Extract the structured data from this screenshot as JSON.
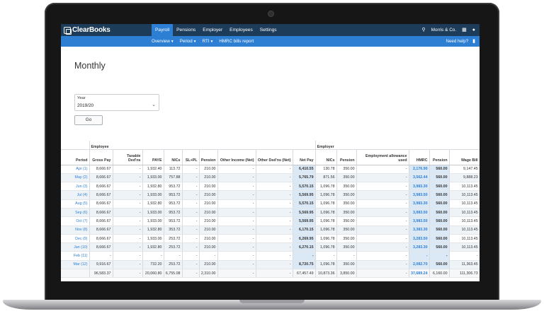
{
  "app": {
    "logo_text": "ClearBooks",
    "main_nav": [
      "Payroll",
      "Pensions",
      "Employer",
      "Employees",
      "Settings"
    ],
    "company": "Morris & Co."
  },
  "subnav": {
    "items": [
      "Overview",
      "Period",
      "RTI",
      "HMRC bills report"
    ],
    "help": "Need help?"
  },
  "page": {
    "title": "Monthly",
    "year_label": "Year",
    "year_value": "2019/20",
    "go_label": "Go"
  },
  "table": {
    "group_headers": {
      "employee": "Employee",
      "employer": "Employer"
    },
    "columns": [
      "Period",
      "Gross Pay",
      "Taxable Ded'ns",
      "PAYE",
      "NICs",
      "SL+PL",
      "Pension",
      "Other Income (Net)",
      "Other Ded'ns (Net)",
      "Net Pay",
      "NICs",
      "Pension",
      "Employment allowance used",
      "HMRC",
      "Pension",
      "Wage Bill"
    ],
    "rows": [
      [
        "Apr (1)",
        "8,666.67",
        "-",
        "1,932.40",
        "113.72",
        "-",
        "210.00",
        "-",
        "-",
        "6,410.55",
        "130.78",
        "350.00",
        "-",
        "2,176.90",
        "560.00",
        "9,147.45"
      ],
      [
        "May (2)",
        "8,666.67",
        "-",
        "1,933.00",
        "757.88",
        "-",
        "210.00",
        "-",
        "-",
        "5,765.79",
        "871.56",
        "350.00",
        "-",
        "3,562.44",
        "560.00",
        "9,888.23"
      ],
      [
        "Jun (3)",
        "8,666.67",
        "-",
        "1,932.80",
        "953.72",
        "-",
        "210.00",
        "-",
        "-",
        "5,570.15",
        "1,096.78",
        "350.00",
        "-",
        "3,983.30",
        "560.00",
        "10,113.45"
      ],
      [
        "Jul (4)",
        "8,666.67",
        "-",
        "1,933.00",
        "953.72",
        "-",
        "210.00",
        "-",
        "-",
        "5,569.95",
        "1,096.78",
        "350.00",
        "-",
        "3,983.50",
        "560.00",
        "10,113.45"
      ],
      [
        "Aug (5)",
        "8,666.67",
        "-",
        "1,932.80",
        "953.72",
        "-",
        "210.00",
        "-",
        "-",
        "5,570.15",
        "1,096.78",
        "350.00",
        "-",
        "3,983.30",
        "560.00",
        "10,113.45"
      ],
      [
        "Sep (6)",
        "8,666.67",
        "-",
        "1,933.00",
        "953.72",
        "-",
        "210.00",
        "-",
        "-",
        "5,569.95",
        "1,096.78",
        "350.00",
        "-",
        "3,983.50",
        "560.00",
        "10,113.45"
      ],
      [
        "Oct (7)",
        "8,666.67",
        "-",
        "1,933.00",
        "953.72",
        "-",
        "210.00",
        "-",
        "-",
        "5,569.95",
        "1,096.78",
        "350.00",
        "-",
        "3,983.50",
        "560.00",
        "10,113.45"
      ],
      [
        "Nov (8)",
        "8,666.67",
        "-",
        "1,932.80",
        "353.72",
        "-",
        "210.00",
        "-",
        "-",
        "6,170.15",
        "1,096.78",
        "350.00",
        "-",
        "3,383.30",
        "560.00",
        "10,113.45"
      ],
      [
        "Dec (9)",
        "8,666.67",
        "-",
        "1,933.00",
        "253.72",
        "-",
        "210.00",
        "-",
        "-",
        "6,269.95",
        "1,096.78",
        "350.00",
        "-",
        "3,283.50",
        "560.00",
        "10,113.45"
      ],
      [
        "Jan (10)",
        "8,666.67",
        "-",
        "1,932.80",
        "253.72",
        "-",
        "210.00",
        "-",
        "-",
        "6,270.15",
        "1,096.78",
        "350.00",
        "-",
        "3,283.30",
        "560.00",
        "10,113.45"
      ],
      [
        "Feb (11)",
        "-",
        "-",
        "-",
        "-",
        "-",
        "-",
        "-",
        "-",
        "-",
        "-",
        "-",
        "-",
        "-",
        "-",
        "-"
      ],
      [
        "Mar (12)",
        "9,916.67",
        "-",
        "732.20",
        "253.72",
        "-",
        "210.00",
        "-",
        "-",
        "8,720.75",
        "1,096.78",
        "350.00",
        "-",
        "2,082.70",
        "560.00",
        "11,363.45"
      ]
    ],
    "totals": [
      "",
      "96,583.37",
      "-",
      "20,060.80",
      "6,755.08",
      "-",
      "2,310.00",
      "-",
      "-",
      "67,457.49",
      "10,873.36",
      "3,850.00",
      "-",
      "37,689.24",
      "6,160.00",
      "111,306.73"
    ]
  }
}
